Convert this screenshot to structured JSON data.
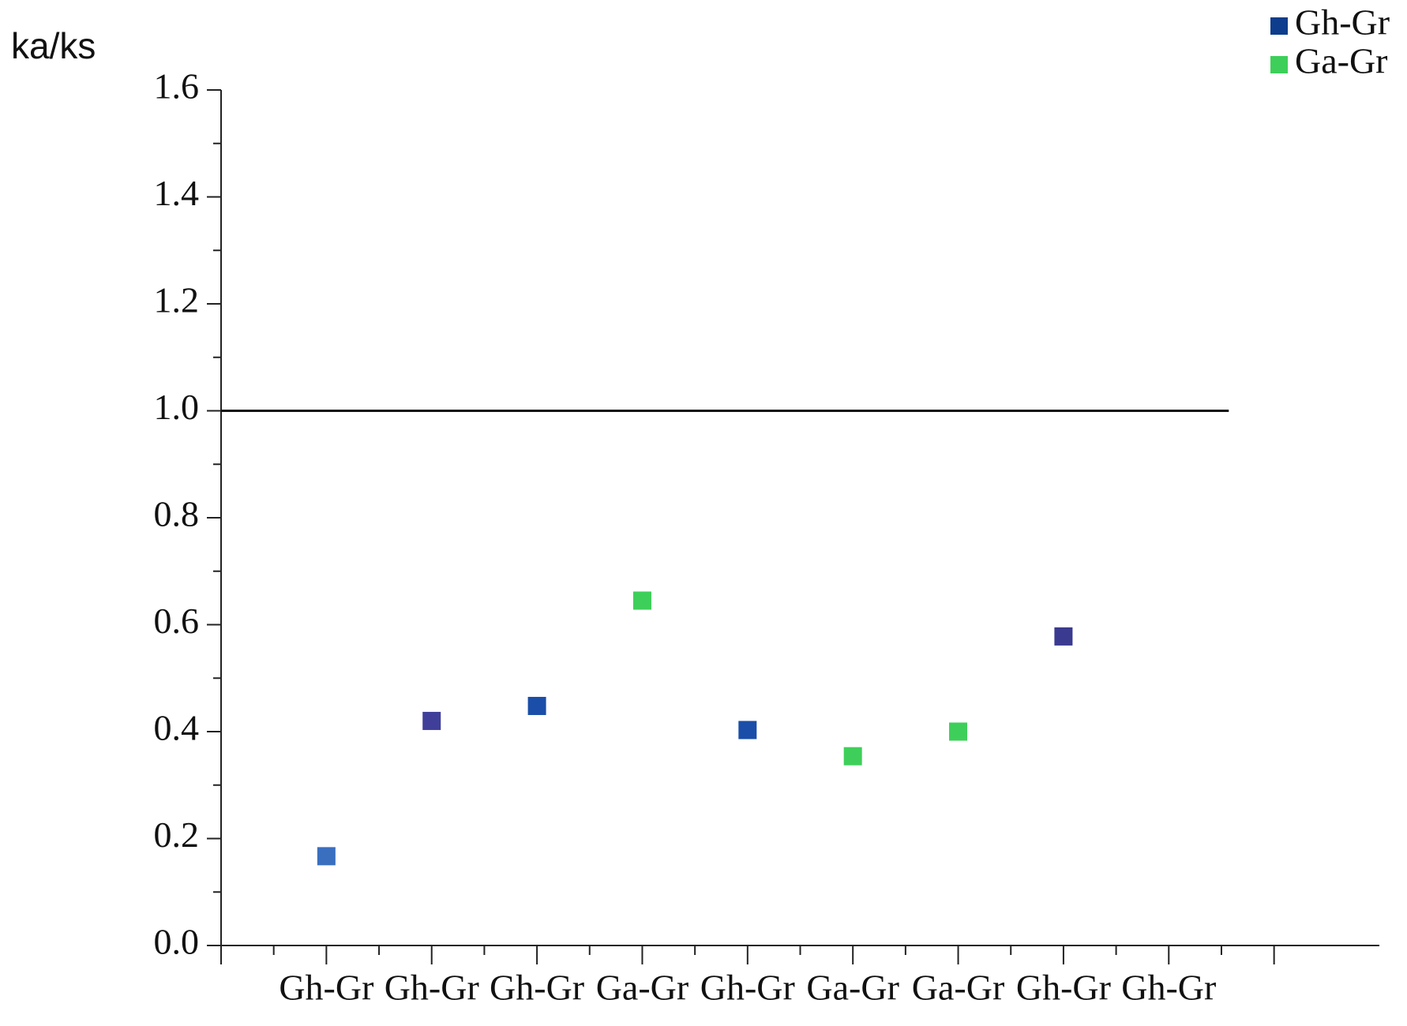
{
  "chart_data": {
    "type": "scatter",
    "y_label": "ka/ks",
    "categories": [
      "Gh-Gr",
      "Gh-Gr",
      "Gh-Gr",
      "Ga-Gr",
      "Gh-Gr",
      "Ga-Gr",
      "Ga-Gr",
      "Gh-Gr",
      "Gh-Gr"
    ],
    "series": [
      {
        "name": "Gh-Gr",
        "color": "#0d3d8c",
        "values": [
          0.167,
          0.42,
          0.448,
          null,
          0.403,
          null,
          null,
          0.578,
          null
        ],
        "point_colors": [
          "#3a6fc0",
          "#3f3f9a",
          "#1a4ea8",
          null,
          "#1a4ea8",
          null,
          null,
          "#3a3a90",
          null
        ]
      },
      {
        "name": "Ga-Gr",
        "color": "#3ecf5a",
        "values": [
          null,
          null,
          null,
          0.645,
          null,
          0.354,
          0.4,
          null,
          null
        ],
        "point_colors": [
          null,
          null,
          null,
          "#3ecf5a",
          null,
          "#3ecf5a",
          "#3ecf5a",
          null,
          null
        ]
      }
    ],
    "ylim": [
      0,
      1.6
    ],
    "yticks": [
      {
        "value": 0,
        "label": "0.0"
      },
      0.2,
      0.4,
      0.6,
      0.8,
      {
        "value": 1,
        "label": "1.0"
      },
      1.2,
      1.4,
      1.6
    ],
    "hline": 1.0,
    "legend": "top-right"
  }
}
